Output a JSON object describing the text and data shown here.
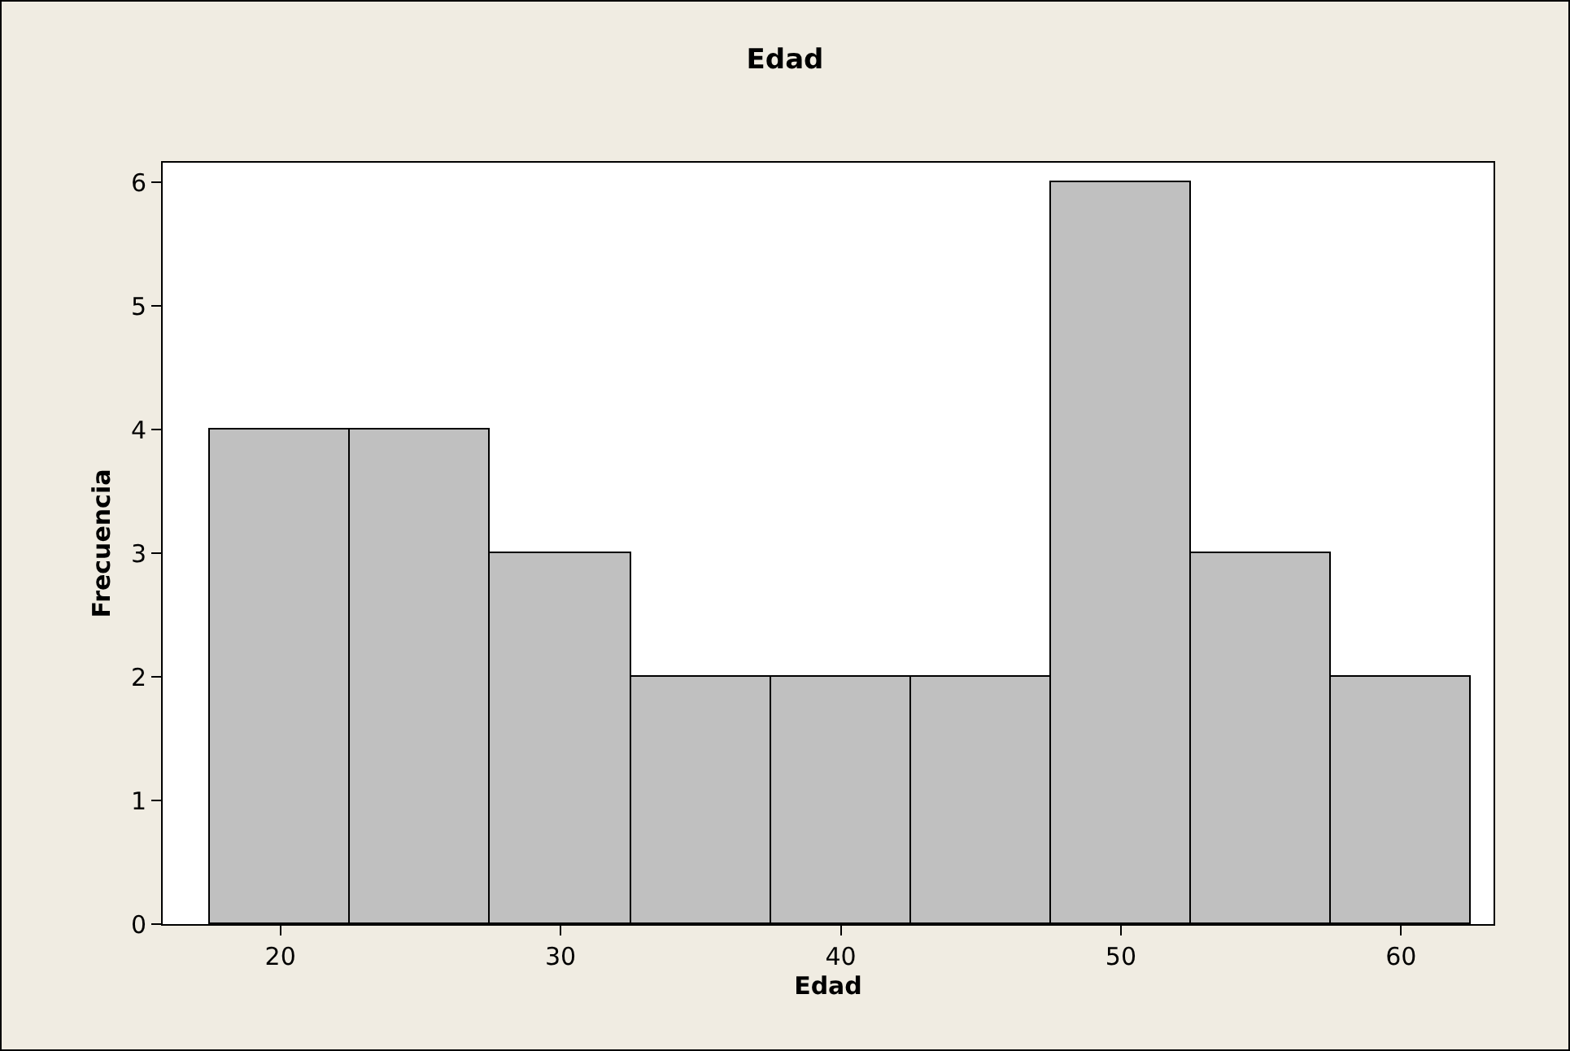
{
  "chart_data": {
    "type": "histogram",
    "title": "Edad",
    "xlabel": "Edad",
    "ylabel": "Frecuencia",
    "bins": [
      17.5,
      22.5,
      27.5,
      32.5,
      37.5,
      42.5,
      47.5,
      52.5,
      57.5,
      62.5
    ],
    "values": [
      4,
      4,
      3,
      2,
      2,
      2,
      6,
      3,
      2
    ],
    "color": "#c0c0c0",
    "xlim": [
      15.8,
      63.3
    ],
    "xticks": [
      20,
      30,
      40,
      50,
      60
    ],
    "ylim": [
      0,
      6.16
    ],
    "yticks": [
      0,
      1,
      2,
      3,
      4,
      5,
      6
    ],
    "grid": false
  }
}
